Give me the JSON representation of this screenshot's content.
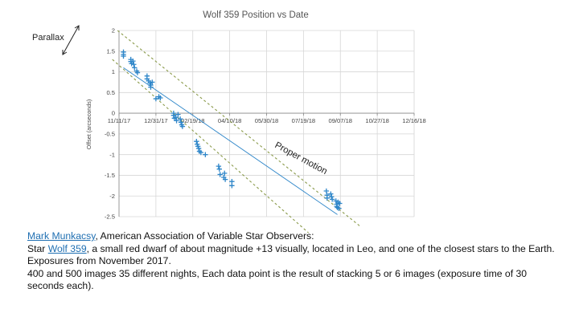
{
  "chart_data": {
    "type": "scatter",
    "title": "Wolf 359 Position vs Date",
    "ylabel": "Offset (arcseconds)",
    "xlabel": "",
    "x_tick_labels": [
      "11/11/17",
      "12/31/17",
      "02/19/18",
      "04/10/18",
      "05/30/18",
      "07/19/18",
      "09/07/18",
      "10/27/18",
      "12/16/18"
    ],
    "xlim": [
      "2017-11-11",
      "2018-12-16"
    ],
    "ylim": [
      -2.5,
      2
    ],
    "y_ticks": [
      "2",
      "1.5",
      "1",
      "0.5",
      "0",
      "-0.5",
      "-1",
      "-1.5",
      "-2",
      "-2.5"
    ],
    "grid": true,
    "marker": "+",
    "series": [
      {
        "color": "#2e86c9",
        "points": [
          [
            "2017-11-17",
            1.48
          ],
          [
            "2017-11-17",
            1.42
          ],
          [
            "2017-11-17",
            1.38
          ],
          [
            "2017-11-27",
            1.3
          ],
          [
            "2017-11-27",
            1.25
          ],
          [
            "2017-11-28",
            1.2
          ],
          [
            "2017-11-30",
            1.26
          ],
          [
            "2017-12-01",
            1.18
          ],
          [
            "2017-12-02",
            1.1
          ],
          [
            "2017-12-05",
            1.02
          ],
          [
            "2017-12-06",
            0.98
          ],
          [
            "2017-12-19",
            0.9
          ],
          [
            "2017-12-19",
            0.83
          ],
          [
            "2017-12-21",
            0.78
          ],
          [
            "2017-12-23",
            0.73
          ],
          [
            "2017-12-24",
            0.68
          ],
          [
            "2017-12-24",
            0.63
          ],
          [
            "2017-12-26",
            0.75
          ],
          [
            "2017-12-31",
            0.35
          ],
          [
            "2018-01-04",
            0.4
          ],
          [
            "2018-01-06",
            0.37
          ],
          [
            "2018-01-24",
            0.0
          ],
          [
            "2018-01-24",
            -0.05
          ],
          [
            "2018-01-25",
            -0.12
          ],
          [
            "2018-01-27",
            -0.1
          ],
          [
            "2018-01-28",
            -0.18
          ],
          [
            "2018-01-30",
            -0.03
          ],
          [
            "2018-02-02",
            -0.14
          ],
          [
            "2018-02-03",
            -0.22
          ],
          [
            "2018-02-04",
            -0.28
          ],
          [
            "2018-02-05",
            -0.32
          ],
          [
            "2018-02-24",
            -0.68
          ],
          [
            "2018-02-25",
            -0.75
          ],
          [
            "2018-02-26",
            -0.8
          ],
          [
            "2018-02-27",
            -0.85
          ],
          [
            "2018-02-28",
            -0.92
          ],
          [
            "2018-03-02",
            -0.95
          ],
          [
            "2018-03-08",
            -1.0
          ],
          [
            "2018-03-26",
            -1.28
          ],
          [
            "2018-03-27",
            -1.35
          ],
          [
            "2018-03-28",
            -1.48
          ],
          [
            "2018-04-02",
            -1.55
          ],
          [
            "2018-04-03",
            -1.45
          ],
          [
            "2018-04-04",
            -1.6
          ],
          [
            "2018-04-13",
            -1.65
          ],
          [
            "2018-04-13",
            -1.75
          ],
          [
            "2018-08-19",
            -1.88
          ],
          [
            "2018-08-20",
            -1.98
          ],
          [
            "2018-08-20",
            -2.05
          ],
          [
            "2018-08-25",
            -1.95
          ],
          [
            "2018-08-26",
            -2.02
          ],
          [
            "2018-08-27",
            -2.08
          ],
          [
            "2018-09-01",
            -2.12
          ],
          [
            "2018-09-02",
            -2.2
          ],
          [
            "2018-09-02",
            -2.25
          ],
          [
            "2018-09-03",
            -2.28
          ],
          [
            "2018-09-04",
            -2.15
          ],
          [
            "2018-09-05",
            -2.3
          ],
          [
            "2018-09-06",
            -2.18
          ]
        ]
      }
    ],
    "trend_lines": [
      {
        "style": "solid",
        "color": "#2e86c9",
        "from": [
          "2017-11-17",
          1.1
        ],
        "to": [
          "2018-09-03",
          -2.45
        ]
      },
      {
        "style": "dashed",
        "color": "#8a9a4a",
        "from": [
          "2017-11-09",
          2.0
        ],
        "to": [
          "2018-10-05",
          -2.75
        ]
      },
      {
        "style": "dashed",
        "color": "#8a9a4a",
        "from": [
          "2017-11-02",
          1.3
        ],
        "to": [
          "2018-08-24",
          -3.35
        ]
      }
    ],
    "annotations": {
      "parallax": "Parallax",
      "proper_motion": "Proper motion"
    }
  },
  "caption": {
    "line1_link": "Mark Munkacsy",
    "line1_text": ", American Association of Variable Star Observers:",
    "line2_prefix": "Star ",
    "line2_link": "Wolf 359",
    "line2_text": ", a small red dwarf of about magnitude +13 visually, located in Leo, and one of the closest stars to the Earth.",
    "line3": "Exposures from November 2017.",
    "line4": "400 and 500 images  35 different nights, Each data point is the result of stacking 5 or 6 images (exposure time of 30 seconds each)."
  }
}
